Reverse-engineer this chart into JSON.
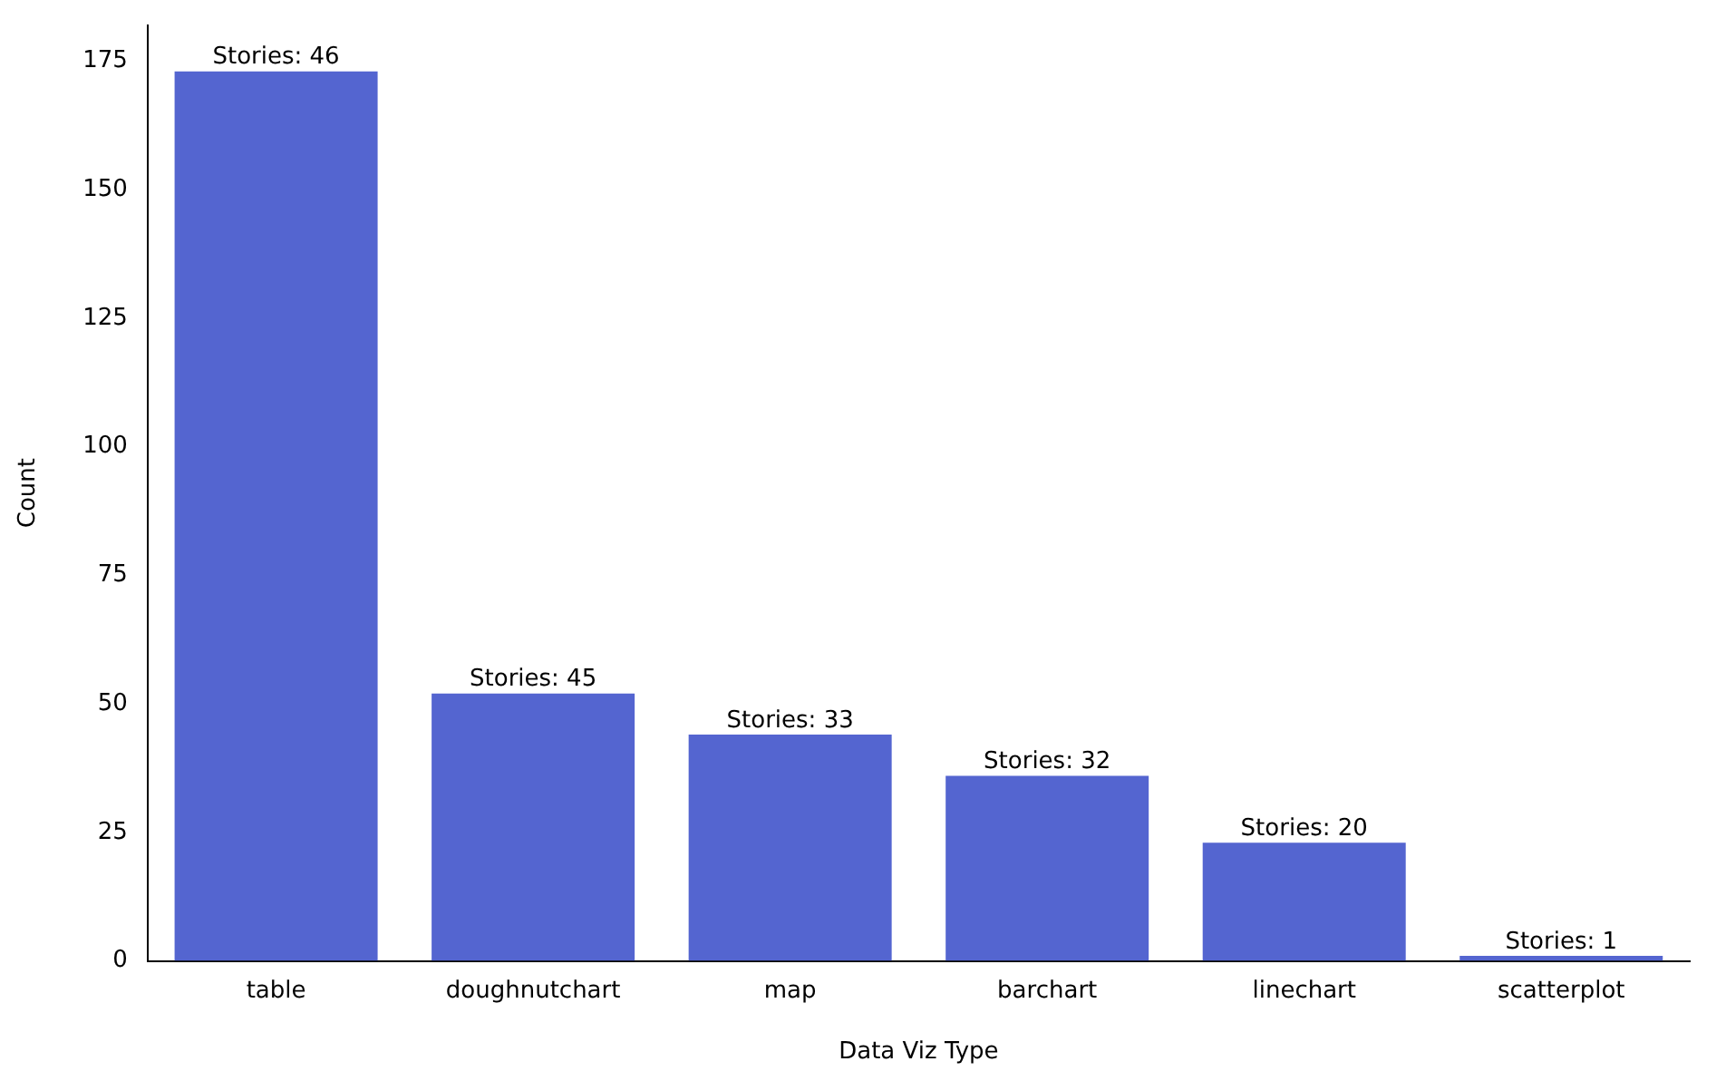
{
  "chart_data": {
    "type": "bar",
    "xlabel": "Data Viz Type",
    "ylabel": "Count",
    "categories": [
      "table",
      "doughnutchart",
      "map",
      "barchart",
      "linechart",
      "scatterplot"
    ],
    "values": [
      173,
      52,
      44,
      36,
      23,
      1
    ],
    "annotations": [
      {
        "text": "Stories: 46",
        "x": "table",
        "y": 173
      },
      {
        "text": "Stories: 45",
        "x": "doughnutchart",
        "y": 52
      },
      {
        "text": "Stories: 33",
        "x": "map",
        "y": 44
      },
      {
        "text": "Stories: 32",
        "x": "barchart",
        "y": 36
      },
      {
        "text": "Stories: 20",
        "x": "linechart",
        "y": 23
      },
      {
        "text": "Stories: 1",
        "x": "scatterplot",
        "y": 1
      }
    ],
    "color": "#5465d0",
    "ylim": [
      0,
      182
    ],
    "yticks": [
      0,
      25,
      50,
      75,
      100,
      125,
      150,
      175
    ]
  }
}
